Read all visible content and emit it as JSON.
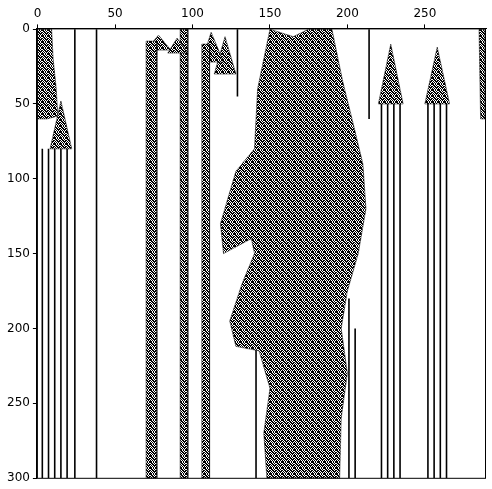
{
  "chart_data": {
    "type": "raster",
    "color": "#000000",
    "xlim": [
      -0.5,
      289.5
    ],
    "ylim": [
      300.5,
      -0.5
    ],
    "xticks": [
      0,
      50,
      100,
      150,
      200,
      250
    ],
    "yticks": [
      0,
      50,
      100,
      150,
      200,
      250,
      300
    ],
    "grid": false,
    "regions": [
      [
        [
          0,
          0
        ],
        [
          9,
          0
        ],
        [
          10,
          20
        ],
        [
          12,
          40
        ],
        [
          13,
          58
        ],
        [
          6,
          60
        ],
        [
          0,
          60
        ]
      ],
      [
        [
          15,
          48
        ],
        [
          22,
          80
        ],
        [
          8,
          80
        ]
      ],
      [
        [
          70,
          8
        ],
        [
          77,
          8
        ],
        [
          77,
          300
        ],
        [
          70,
          300
        ]
      ],
      [
        [
          70,
          14
        ],
        [
          78,
          4
        ],
        [
          86,
          14
        ]
      ],
      [
        [
          84,
          16
        ],
        [
          90,
          6
        ],
        [
          97,
          16
        ]
      ],
      [
        [
          92,
          0
        ],
        [
          97,
          0
        ],
        [
          97,
          300
        ],
        [
          92,
          300
        ]
      ],
      [
        [
          106,
          10
        ],
        [
          111,
          10
        ],
        [
          111,
          300
        ],
        [
          106,
          300
        ]
      ],
      [
        [
          106,
          22
        ],
        [
          112,
          2
        ],
        [
          120,
          22
        ]
      ],
      [
        [
          114,
          30
        ],
        [
          121,
          5
        ],
        [
          128,
          30
        ]
      ],
      [
        [
          150,
          0
        ],
        [
          165,
          5
        ],
        [
          175,
          0
        ],
        [
          190,
          0
        ],
        [
          197,
          35
        ],
        [
          203,
          60
        ],
        [
          210,
          90
        ],
        [
          212,
          120
        ],
        [
          207,
          150
        ],
        [
          200,
          175
        ],
        [
          196,
          200
        ],
        [
          200,
          230
        ],
        [
          196,
          260
        ],
        [
          195,
          300
        ],
        [
          148,
          300
        ],
        [
          146,
          270
        ],
        [
          150,
          240
        ],
        [
          143,
          215
        ],
        [
          128,
          212
        ],
        [
          124,
          195
        ],
        [
          132,
          170
        ],
        [
          140,
          150
        ],
        [
          138,
          140
        ],
        [
          120,
          150
        ],
        [
          118,
          130
        ],
        [
          128,
          95
        ],
        [
          140,
          80
        ],
        [
          142,
          40
        ]
      ],
      [
        [
          220,
          50
        ],
        [
          228,
          10
        ],
        [
          236,
          50
        ]
      ],
      [
        [
          250,
          50
        ],
        [
          258,
          12
        ],
        [
          266,
          50
        ]
      ],
      [
        [
          285,
          0
        ],
        [
          289,
          0
        ],
        [
          289,
          60
        ],
        [
          286,
          60
        ]
      ]
    ],
    "lines": [
      [
        3,
        80,
        300
      ],
      [
        7,
        80,
        300
      ],
      [
        11,
        80,
        300
      ],
      [
        15,
        80,
        300
      ],
      [
        19,
        80,
        300
      ],
      [
        24,
        0,
        300
      ],
      [
        38,
        0,
        300
      ],
      [
        129,
        0,
        45
      ],
      [
        141,
        210,
        300
      ],
      [
        201,
        180,
        300
      ],
      [
        205,
        200,
        300
      ],
      [
        214,
        0,
        60
      ],
      [
        222,
        50,
        300
      ],
      [
        226,
        50,
        300
      ],
      [
        230,
        50,
        300
      ],
      [
        234,
        50,
        300
      ],
      [
        252,
        50,
        300
      ],
      [
        256,
        50,
        300
      ],
      [
        260,
        50,
        300
      ],
      [
        264,
        50,
        300
      ]
    ]
  }
}
